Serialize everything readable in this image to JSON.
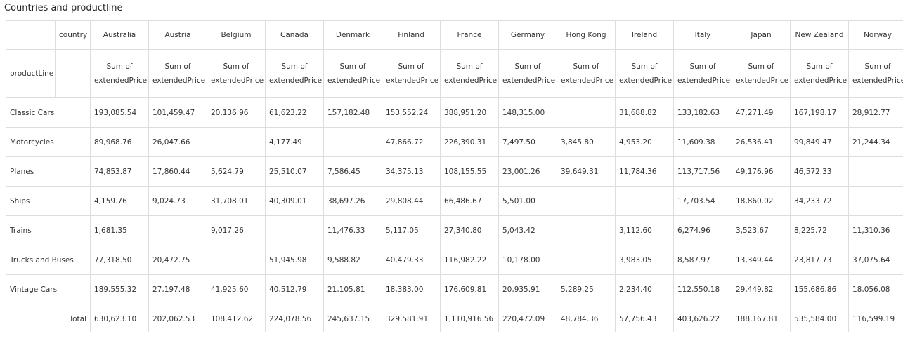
{
  "header": {
    "title": "Countries and productline"
  },
  "table": {
    "column_field": "country",
    "row_field": "productLine",
    "columns": [
      "Australia",
      "Austria",
      "Belgium",
      "Canada",
      "Denmark",
      "Finland",
      "France",
      "Germany",
      "Hong Kong",
      "Ireland",
      "Italy",
      "Japan",
      "New Zealand",
      "Norway"
    ],
    "measures": [
      "Sum of extendedPrice",
      "Sum of extendedPrice",
      "Sum of extendedPrice",
      "Sum of extendedPrice",
      "Sum of extendedPrice",
      "Sum of extendedPrice",
      "Sum of extendedPrice",
      "Sum of extendedPrice",
      "Sum of extendedPrice",
      "Sum of extendedPrice",
      "Sum of extendedPrice",
      "Sum of extendedPrice",
      "Sum of extendedPrice",
      "Sum of extendedPrice"
    ],
    "rows": [
      {
        "label": "Classic Cars",
        "cells": [
          "193,085.54",
          "101,459.47",
          "20,136.96",
          "61,623.22",
          "157,182.48",
          "153,552.24",
          "388,951.20",
          "148,315.00",
          null,
          "31,688.82",
          "133,182.63",
          "47,271.49",
          "167,198.17",
          "28,912.77"
        ]
      },
      {
        "label": "Motorcycles",
        "cells": [
          "89,968.76",
          "26,047.66",
          null,
          "4,177.49",
          null,
          "47,866.72",
          "226,390.31",
          "7,497.50",
          "3,845.80",
          "4,953.20",
          "11,609.38",
          "26,536.41",
          "99,849.47",
          "21,244.34"
        ]
      },
      {
        "label": "Planes",
        "cells": [
          "74,853.87",
          "17,860.44",
          "5,624.79",
          "25,510.07",
          "7,586.45",
          "34,375.13",
          "108,155.55",
          "23,001.26",
          "39,649.31",
          "11,784.36",
          "113,717.56",
          "49,176.96",
          "46,572.33",
          null
        ]
      },
      {
        "label": "Ships",
        "cells": [
          "4,159.76",
          "9,024.73",
          "31,708.01",
          "40,309.01",
          "38,697.26",
          "29,808.44",
          "66,486.67",
          "5,501.00",
          null,
          null,
          "17,703.54",
          "18,860.02",
          "34,233.72",
          null
        ]
      },
      {
        "label": "Trains",
        "cells": [
          "1,681.35",
          null,
          "9,017.26",
          null,
          "11,476.33",
          "5,117.05",
          "27,340.80",
          "5,043.42",
          null,
          "3,112.60",
          "6,274.96",
          "3,523.67",
          "8,225.72",
          "11,310.36"
        ]
      },
      {
        "label": "Trucks and Buses",
        "cells": [
          "77,318.50",
          "20,472.75",
          null,
          "51,945.98",
          "9,588.82",
          "40,479.33",
          "116,982.22",
          "10,178.00",
          null,
          "3,983.05",
          "8,587.97",
          "13,349.44",
          "23,817.73",
          "37,075.64"
        ]
      },
      {
        "label": "Vintage Cars",
        "cells": [
          "189,555.32",
          "27,197.48",
          "41,925.60",
          "40,512.79",
          "21,105.81",
          "18,383.00",
          "176,609.81",
          "20,935.91",
          "5,289.25",
          "2,234.40",
          "112,550.18",
          "29,449.82",
          "155,686.86",
          "18,056.08"
        ]
      }
    ],
    "total": {
      "label": "Total",
      "cells": [
        "630,623.10",
        "202,062.53",
        "108,412.62",
        "224,078.56",
        "245,637.15",
        "329,581.91",
        "1,110,916.56",
        "220,472.09",
        "48,784.36",
        "57,756.43",
        "403,626.22",
        "188,167.81",
        "535,584.00",
        "116,599.19"
      ]
    }
  }
}
